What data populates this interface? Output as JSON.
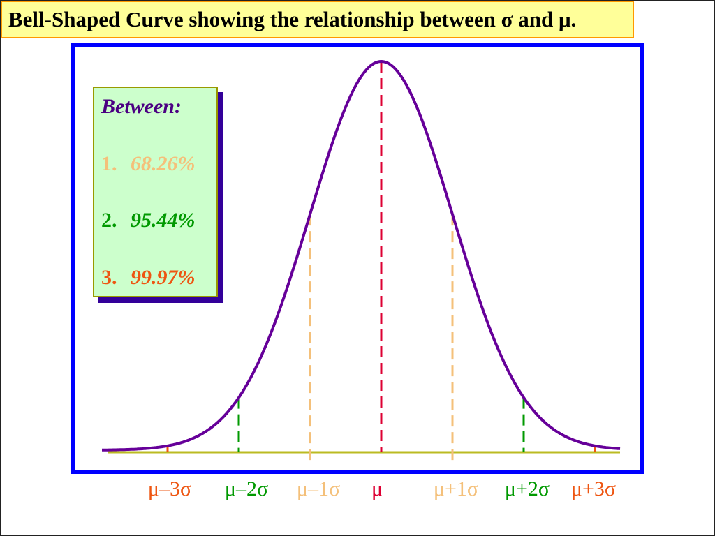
{
  "title": "Bell-Shaped Curve showing the relationship between σ and μ.",
  "legend": {
    "heading": "Between:",
    "items": [
      {
        "number": "1.",
        "value": "68.26%",
        "color": "#f4c07a"
      },
      {
        "number": "2.",
        "value": "95.44%",
        "color": "#009900"
      },
      {
        "number": "3.",
        "value": "99.97%",
        "color": "#ee5511"
      }
    ]
  },
  "axis_labels": [
    {
      "text": "μ–3σ",
      "color": "#ee5511"
    },
    {
      "text": "μ–2σ",
      "color": "#009900"
    },
    {
      "text": "μ–1σ",
      "color": "#f4c07a"
    },
    {
      "text": "μ",
      "color": "#dd0033"
    },
    {
      "text": "μ+1σ",
      "color": "#f4c07a"
    },
    {
      "text": "μ+2σ",
      "color": "#009900"
    },
    {
      "text": "μ+3σ",
      "color": "#ee5511"
    }
  ],
  "colors": {
    "curve": "#660099",
    "baseline": "#bbbb22",
    "frame": "#0000ff",
    "title_bg": "#ffff99",
    "title_border": "#ff9900"
  }
}
